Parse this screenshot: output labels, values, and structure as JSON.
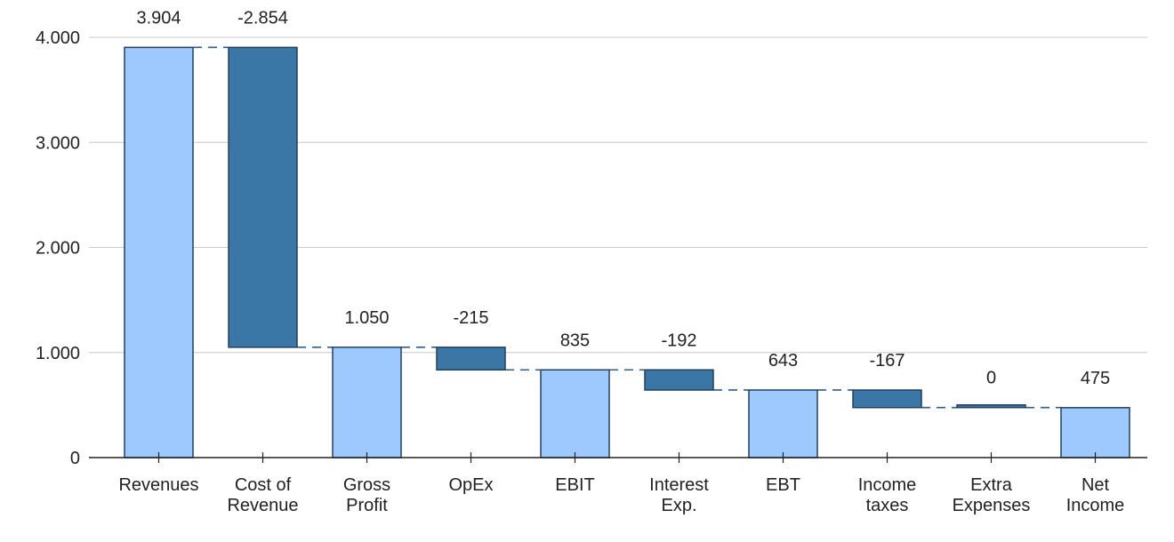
{
  "chart_data": {
    "type": "bar",
    "subtype": "waterfall",
    "title": "",
    "xlabel": "",
    "ylabel": "",
    "ylim": [
      0,
      4000
    ],
    "yticks": [
      0,
      1000,
      2000,
      3000,
      4000
    ],
    "ytick_labels": [
      "0",
      "1.000",
      "2.000",
      "3.000",
      "4.000"
    ],
    "grid": true,
    "colors": {
      "total": "#9ec9ff",
      "delta": "#3a77a6",
      "outline": "#24405c",
      "connector": "#2f5f8a"
    },
    "categories": [
      {
        "lines": [
          "Revenues"
        ],
        "kind": "total",
        "value": 3904,
        "label": "3.904"
      },
      {
        "lines": [
          "Cost of",
          "Revenue"
        ],
        "kind": "delta",
        "value": -2854,
        "label": "-2.854"
      },
      {
        "lines": [
          "Gross",
          "Profit"
        ],
        "kind": "total",
        "value": 1050,
        "label": "1.050"
      },
      {
        "lines": [
          "OpEx"
        ],
        "kind": "delta",
        "value": -215,
        "label": "-215"
      },
      {
        "lines": [
          "EBIT"
        ],
        "kind": "total",
        "value": 835,
        "label": "835"
      },
      {
        "lines": [
          "Interest",
          "Exp."
        ],
        "kind": "delta",
        "value": -192,
        "label": "-192"
      },
      {
        "lines": [
          "EBT"
        ],
        "kind": "total",
        "value": 643,
        "label": "643"
      },
      {
        "lines": [
          "Income",
          "taxes"
        ],
        "kind": "delta",
        "value": -167,
        "label": "-167"
      },
      {
        "lines": [
          "Extra",
          "Expenses"
        ],
        "kind": "delta",
        "value": 0,
        "label": "0"
      },
      {
        "lines": [
          "Net",
          "Income"
        ],
        "kind": "total",
        "value": 475,
        "label": "475"
      }
    ]
  }
}
